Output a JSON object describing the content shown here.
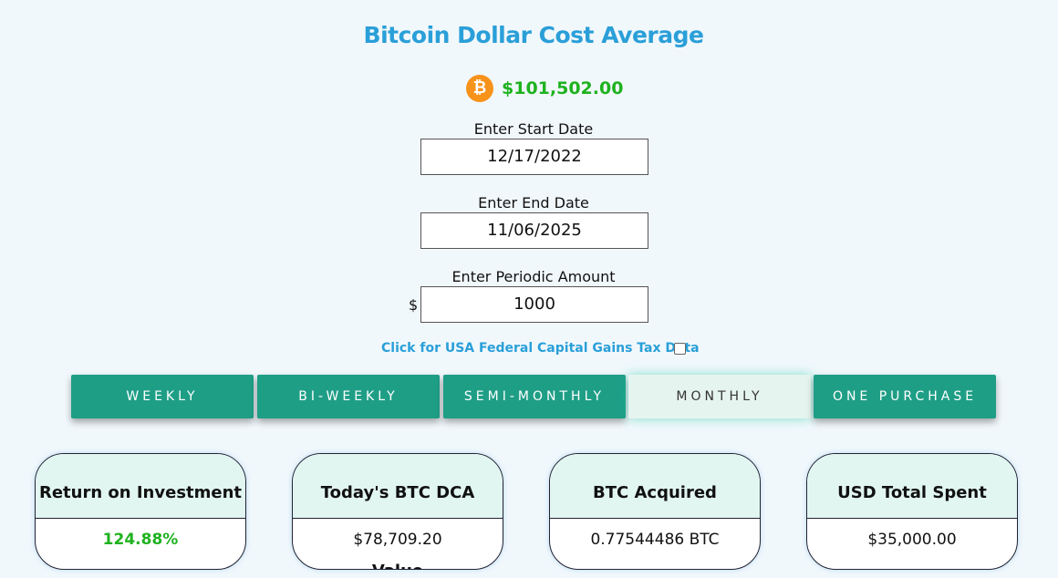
{
  "header": {
    "title": "Bitcoin Dollar Cost Average",
    "price": "$101,502.00"
  },
  "form": {
    "start_date": {
      "label": "Enter Start Date",
      "value": "12/17/2022"
    },
    "end_date": {
      "label": "Enter End Date",
      "value": "11/06/2025"
    },
    "amount": {
      "label": "Enter Periodic Amount",
      "prefix": "$",
      "value": "1000"
    },
    "tax_link": "Click for USA Federal Capital Gains Tax Data"
  },
  "frequency_buttons": [
    "WEEKLY",
    "BI-WEEKLY",
    "SEMI-MONTHLY",
    "MONTHLY",
    "ONE PURCHASE"
  ],
  "active_button": 3,
  "cards": [
    {
      "title": "Return on Investment",
      "value": "124.88%"
    },
    {
      "title": "Today's BTC DCA Value",
      "value": "$78,709.20"
    },
    {
      "title": "BTC Acquired",
      "value": "0.77544486 BTC"
    },
    {
      "title": "USD Total Spent",
      "value": "$35,000.00"
    }
  ]
}
